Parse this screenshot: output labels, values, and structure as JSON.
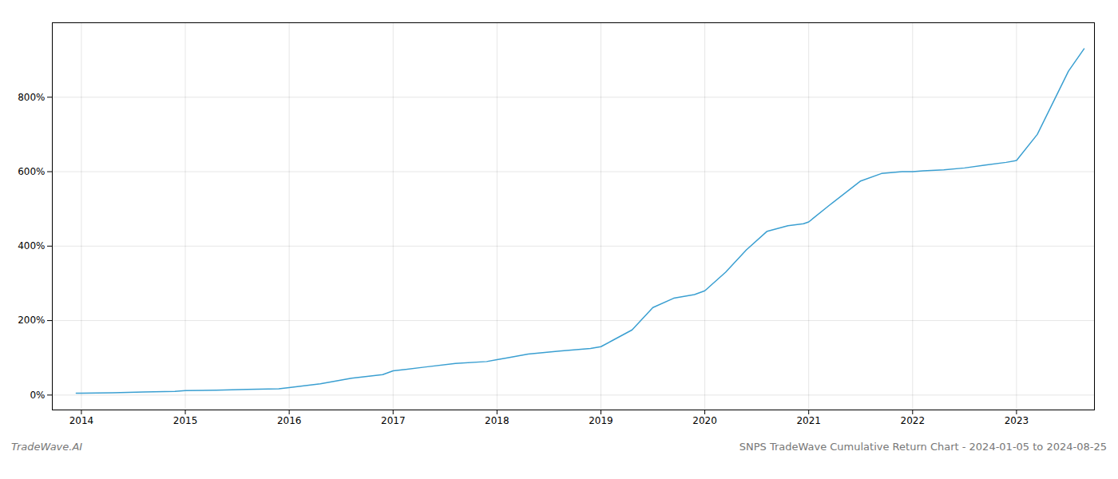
{
  "chart_data": {
    "type": "line",
    "title": "SNPS TradeWave Cumulative Return Chart - 2024-01-05 to 2024-08-25",
    "watermark": "TradeWave.AI",
    "color": "#3a9fd1",
    "grid": true,
    "x": [
      2013.95,
      2014.0,
      2014.3,
      2014.6,
      2014.9,
      2015.0,
      2015.3,
      2015.6,
      2015.9,
      2016.0,
      2016.3,
      2016.6,
      2016.9,
      2017.0,
      2017.3,
      2017.6,
      2017.9,
      2018.0,
      2018.1,
      2018.3,
      2018.6,
      2018.9,
      2019.0,
      2019.1,
      2019.3,
      2019.5,
      2019.7,
      2019.9,
      2020.0,
      2020.2,
      2020.4,
      2020.6,
      2020.8,
      2020.95,
      2021.0,
      2021.2,
      2021.5,
      2021.7,
      2021.9,
      2022.0,
      2022.1,
      2022.3,
      2022.5,
      2022.7,
      2022.9,
      2023.0,
      2023.2,
      2023.5,
      2023.65
    ],
    "values": [
      5,
      5,
      6,
      8,
      10,
      12,
      13,
      15,
      17,
      20,
      30,
      45,
      55,
      65,
      75,
      85,
      90,
      95,
      100,
      110,
      118,
      125,
      130,
      145,
      175,
      235,
      260,
      270,
      280,
      330,
      390,
      440,
      455,
      460,
      465,
      510,
      575,
      595,
      600,
      600,
      602,
      605,
      610,
      618,
      625,
      630,
      700,
      870,
      930
    ],
    "xlim": [
      2013.72,
      2023.75
    ],
    "xticks": [
      2014,
      2015,
      2016,
      2017,
      2018,
      2019,
      2020,
      2021,
      2022,
      2023
    ],
    "ylim": [
      -40,
      1000
    ],
    "yticks": [
      {
        "value": 0,
        "label": "0%"
      },
      {
        "value": 200,
        "label": "200%"
      },
      {
        "value": 400,
        "label": "400%"
      },
      {
        "value": 600,
        "label": "600%"
      },
      {
        "value": 800,
        "label": "800%"
      }
    ]
  }
}
